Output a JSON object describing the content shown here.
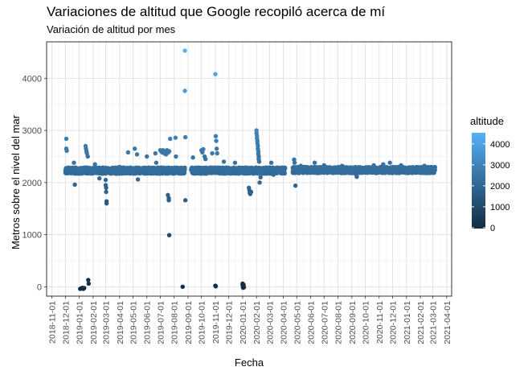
{
  "title": "Variaciones de altitud que Google recopiló acerca de mí",
  "subtitle": "Variación de altitud por mes",
  "chart_data": {
    "type": "scatter",
    "xlabel": "Fecha",
    "ylabel": "Metros sobre el nivel del mar",
    "x_ticks": [
      "2018-11-01",
      "2018-12-01",
      "2019-01-01",
      "2019-02-01",
      "2019-03-01",
      "2019-04-01",
      "2019-05-01",
      "2019-06-01",
      "2019-07-01",
      "2019-08-01",
      "2019-09-01",
      "2019-10-01",
      "2019-11-01",
      "2019-12-01",
      "2020-01-01",
      "2020-02-01",
      "2020-03-01",
      "2020-04-01",
      "2020-05-01",
      "2020-06-01",
      "2020-07-01",
      "2020-08-01",
      "2020-09-01",
      "2020-10-01",
      "2020-11-01",
      "2020-12-01",
      "2021-01-01",
      "2021-02-01",
      "2021-03-01",
      "2021-04-01"
    ],
    "y_ticks": [
      0,
      1000,
      2000,
      3000,
      4000
    ],
    "xlim": [
      "2018-10-20",
      "2021-04-12"
    ],
    "ylim": [
      -180,
      4700
    ],
    "grid": true,
    "background": "#ffffff",
    "legend": {
      "title": "altitude",
      "position": "right",
      "breaks": [
        0,
        1000,
        2000,
        3000,
        4000
      ],
      "color_low": "#132b43",
      "color_high": "#56b1f7",
      "range": [
        -40,
        4530
      ]
    },
    "baseline": {
      "description_segments": [
        {
          "from": "2018-12-01",
          "to": "2019-08-25",
          "y": 2230
        },
        {
          "from": "2019-09-08",
          "to": "2020-04-05",
          "y": 2230
        },
        {
          "from": "2020-04-22",
          "to": "2021-03-06",
          "y": 2240
        }
      ]
    },
    "points": [
      {
        "x": "2018-12-03",
        "y": 2840
      },
      {
        "x": "2018-12-03",
        "y": 2650
      },
      {
        "x": "2018-12-04",
        "y": 2610
      },
      {
        "x": "2018-12-20",
        "y": 2380
      },
      {
        "x": "2018-12-22",
        "y": 1960
      },
      {
        "x": "2019-01-02",
        "y": 2200
      },
      {
        "x": "2019-01-03",
        "y": -40
      },
      {
        "x": "2019-01-05",
        "y": -30
      },
      {
        "x": "2019-01-08",
        "y": -20
      },
      {
        "x": "2019-01-10",
        "y": -40
      },
      {
        "x": "2019-01-12",
        "y": -25
      },
      {
        "x": "2019-01-15",
        "y": 2700
      },
      {
        "x": "2019-01-16",
        "y": 2650
      },
      {
        "x": "2019-01-17",
        "y": 2600
      },
      {
        "x": "2019-01-18",
        "y": 2560
      },
      {
        "x": "2019-01-20",
        "y": 2500
      },
      {
        "x": "2019-01-21",
        "y": 130
      },
      {
        "x": "2019-01-22",
        "y": 60
      },
      {
        "x": "2019-02-05",
        "y": 2350
      },
      {
        "x": "2019-02-15",
        "y": 2080
      },
      {
        "x": "2019-03-01",
        "y": 2050
      },
      {
        "x": "2019-03-01",
        "y": 1950
      },
      {
        "x": "2019-03-02",
        "y": 1900
      },
      {
        "x": "2019-03-02",
        "y": 1820
      },
      {
        "x": "2019-03-03",
        "y": 1640
      },
      {
        "x": "2019-03-03",
        "y": 1600
      },
      {
        "x": "2019-04-01",
        "y": 2300
      },
      {
        "x": "2019-04-20",
        "y": 2580
      },
      {
        "x": "2019-05-05",
        "y": 2650
      },
      {
        "x": "2019-05-10",
        "y": 2540
      },
      {
        "x": "2019-05-12",
        "y": 2060
      },
      {
        "x": "2019-06-01",
        "y": 2500
      },
      {
        "x": "2019-06-20",
        "y": 2560
      },
      {
        "x": "2019-06-22",
        "y": 2380
      },
      {
        "x": "2019-07-01",
        "y": 2620
      },
      {
        "x": "2019-07-03",
        "y": 2600
      },
      {
        "x": "2019-07-05",
        "y": 2580
      },
      {
        "x": "2019-07-07",
        "y": 2620
      },
      {
        "x": "2019-07-10",
        "y": 2560
      },
      {
        "x": "2019-07-12",
        "y": 2600
      },
      {
        "x": "2019-07-14",
        "y": 2540
      },
      {
        "x": "2019-07-16",
        "y": 2620
      },
      {
        "x": "2019-07-19",
        "y": 2580
      },
      {
        "x": "2019-07-21",
        "y": 2600
      },
      {
        "x": "2019-07-23",
        "y": 2840
      },
      {
        "x": "2019-07-18",
        "y": 1760
      },
      {
        "x": "2019-07-20",
        "y": 1700
      },
      {
        "x": "2019-07-20",
        "y": 1660
      },
      {
        "x": "2019-07-21",
        "y": 990
      },
      {
        "x": "2019-08-04",
        "y": 2860
      },
      {
        "x": "2019-08-05",
        "y": 2500
      },
      {
        "x": "2019-08-20",
        "y": 0
      },
      {
        "x": "2019-08-25",
        "y": 4530
      },
      {
        "x": "2019-08-25",
        "y": 3760
      },
      {
        "x": "2019-08-26",
        "y": 2870
      },
      {
        "x": "2019-08-26",
        "y": 1660
      },
      {
        "x": "2019-09-12",
        "y": 2480
      },
      {
        "x": "2019-10-01",
        "y": 2620
      },
      {
        "x": "2019-10-03",
        "y": 2580
      },
      {
        "x": "2019-10-05",
        "y": 2640
      },
      {
        "x": "2019-10-08",
        "y": 2500
      },
      {
        "x": "2019-10-10",
        "y": 2450
      },
      {
        "x": "2019-10-25",
        "y": 2560
      },
      {
        "x": "2019-11-01",
        "y": 4080
      },
      {
        "x": "2019-11-02",
        "y": 2890
      },
      {
        "x": "2019-11-03",
        "y": 2800
      },
      {
        "x": "2019-11-04",
        "y": 2650
      },
      {
        "x": "2019-11-05",
        "y": 2560
      },
      {
        "x": "2019-11-01",
        "y": 20
      },
      {
        "x": "2019-11-02",
        "y": 10
      },
      {
        "x": "2019-11-20",
        "y": 2400
      },
      {
        "x": "2019-12-15",
        "y": 2380
      },
      {
        "x": "2020-01-01",
        "y": 60
      },
      {
        "x": "2020-01-01",
        "y": 30
      },
      {
        "x": "2020-01-02",
        "y": 0
      },
      {
        "x": "2020-01-02",
        "y": -20
      },
      {
        "x": "2020-01-03",
        "y": 40
      },
      {
        "x": "2020-01-03",
        "y": 10
      },
      {
        "x": "2020-01-04",
        "y": -10
      },
      {
        "x": "2020-01-15",
        "y": 1900
      },
      {
        "x": "2020-01-16",
        "y": 1850
      },
      {
        "x": "2020-01-17",
        "y": 1800
      },
      {
        "x": "2020-01-18",
        "y": 1780
      },
      {
        "x": "2020-01-20",
        "y": 1820
      },
      {
        "x": "2020-02-01",
        "y": 3000
      },
      {
        "x": "2020-02-01",
        "y": 2950
      },
      {
        "x": "2020-02-02",
        "y": 2900
      },
      {
        "x": "2020-02-02",
        "y": 2850
      },
      {
        "x": "2020-02-03",
        "y": 2800
      },
      {
        "x": "2020-02-03",
        "y": 2750
      },
      {
        "x": "2020-02-04",
        "y": 2700
      },
      {
        "x": "2020-02-04",
        "y": 2650
      },
      {
        "x": "2020-02-05",
        "y": 2600
      },
      {
        "x": "2020-02-05",
        "y": 2550
      },
      {
        "x": "2020-02-06",
        "y": 2500
      },
      {
        "x": "2020-02-06",
        "y": 2450
      },
      {
        "x": "2020-02-07",
        "y": 2400
      },
      {
        "x": "2020-02-08",
        "y": 2000
      },
      {
        "x": "2020-02-10",
        "y": 2100
      },
      {
        "x": "2020-03-05",
        "y": 2380
      },
      {
        "x": "2020-03-10",
        "y": 2150
      },
      {
        "x": "2020-04-25",
        "y": 2440
      },
      {
        "x": "2020-04-26",
        "y": 2380
      },
      {
        "x": "2020-04-28",
        "y": 1940
      },
      {
        "x": "2020-05-10",
        "y": 2320
      },
      {
        "x": "2020-06-10",
        "y": 2380
      },
      {
        "x": "2020-07-01",
        "y": 2330
      },
      {
        "x": "2020-08-10",
        "y": 2320
      },
      {
        "x": "2020-09-10",
        "y": 2160
      },
      {
        "x": "2020-09-12",
        "y": 2110
      },
      {
        "x": "2020-10-20",
        "y": 2330
      },
      {
        "x": "2020-11-10",
        "y": 2350
      },
      {
        "x": "2020-11-25",
        "y": 2380
      },
      {
        "x": "2020-12-20",
        "y": 2330
      },
      {
        "x": "2021-02-10",
        "y": 2320
      }
    ]
  }
}
